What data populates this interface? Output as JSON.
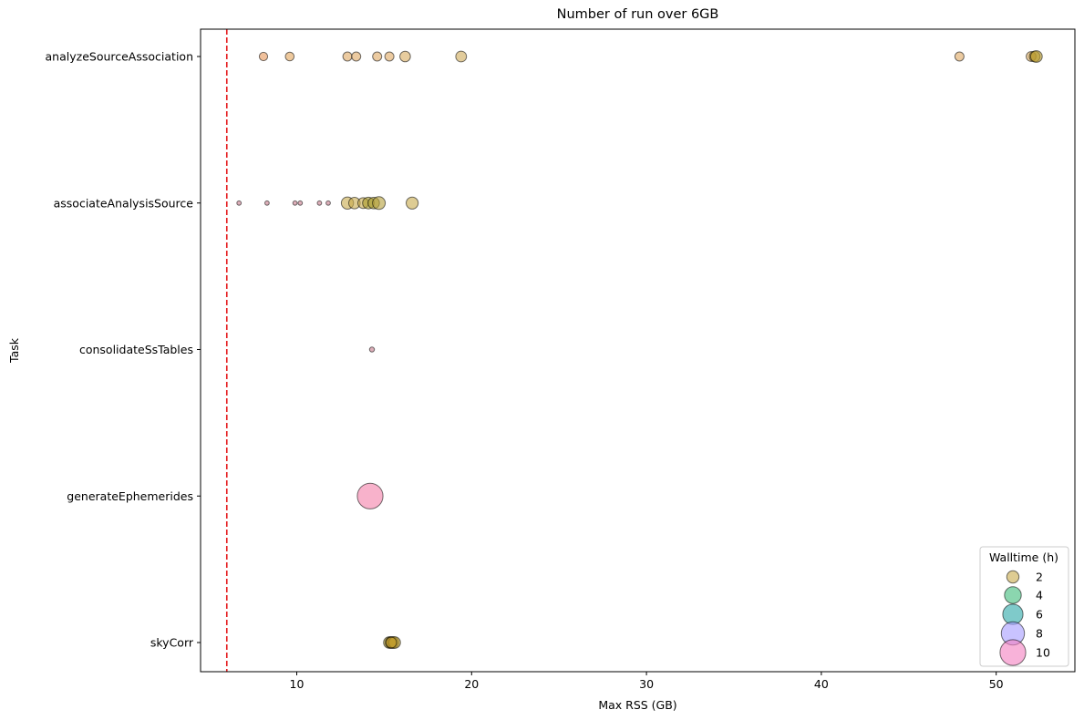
{
  "chart_data": {
    "type": "scatter",
    "title": "Number of run over 6GB",
    "xlabel": "Max RSS (GB)",
    "ylabel": "Task",
    "xlim": [
      4.5,
      54.5
    ],
    "xticks": [
      10,
      20,
      30,
      40,
      50
    ],
    "categories": [
      "analyzeSourceAssociation",
      "associateAnalysisSource",
      "consolidateSsTables",
      "generateEphemerides",
      "skyCorr"
    ],
    "threshold": {
      "x": 6,
      "color": "#e41a1c",
      "style": "dashed"
    },
    "size_encoding": "walltime_h",
    "grid": false,
    "legend": {
      "title": "Walltime (h)",
      "position": "bottom-right",
      "entries": [
        {
          "label": "2",
          "walltime": 2,
          "color": "#c8aa4b"
        },
        {
          "label": "4",
          "walltime": 4,
          "color": "#3dbb7a"
        },
        {
          "label": "6",
          "walltime": 6,
          "color": "#2aa6a6"
        },
        {
          "label": "8",
          "walltime": 8,
          "color": "#a59bff"
        },
        {
          "label": "10",
          "walltime": 10,
          "color": "#f47fbf"
        }
      ]
    },
    "points": [
      {
        "task": "analyzeSourceAssociation",
        "x": 8.1,
        "walltime": 0.8,
        "color": "#e8975a"
      },
      {
        "task": "analyzeSourceAssociation",
        "x": 9.6,
        "walltime": 0.9,
        "color": "#e3a55c"
      },
      {
        "task": "analyzeSourceAssociation",
        "x": 12.9,
        "walltime": 1.0,
        "color": "#e0a962"
      },
      {
        "task": "analyzeSourceAssociation",
        "x": 13.4,
        "walltime": 1.0,
        "color": "#e0a962"
      },
      {
        "task": "analyzeSourceAssociation",
        "x": 14.6,
        "walltime": 1.0,
        "color": "#e0a962"
      },
      {
        "task": "analyzeSourceAssociation",
        "x": 15.3,
        "walltime": 1.0,
        "color": "#e0a962"
      },
      {
        "task": "analyzeSourceAssociation",
        "x": 16.2,
        "walltime": 1.4,
        "color": "#d7aa5e"
      },
      {
        "task": "analyzeSourceAssociation",
        "x": 19.4,
        "walltime": 1.5,
        "color": "#cfaa58"
      },
      {
        "task": "analyzeSourceAssociation",
        "x": 47.9,
        "walltime": 1.0,
        "color": "#e0a962"
      },
      {
        "task": "analyzeSourceAssociation",
        "x": 52.0,
        "walltime": 1.2,
        "color": "#d9a85c"
      },
      {
        "task": "analyzeSourceAssociation",
        "x": 52.2,
        "walltime": 1.5,
        "color": "#b8992c"
      },
      {
        "task": "analyzeSourceAssociation",
        "x": 52.3,
        "walltime": 1.8,
        "color": "#b8992c"
      },
      {
        "task": "associateAnalysisSource",
        "x": 6.7,
        "walltime": 0.15,
        "color": "#c77a8a"
      },
      {
        "task": "associateAnalysisSource",
        "x": 8.3,
        "walltime": 0.15,
        "color": "#c77a8a"
      },
      {
        "task": "associateAnalysisSource",
        "x": 9.9,
        "walltime": 0.15,
        "color": "#c77a8a"
      },
      {
        "task": "associateAnalysisSource",
        "x": 10.2,
        "walltime": 0.15,
        "color": "#c77a8a"
      },
      {
        "task": "associateAnalysisSource",
        "x": 11.3,
        "walltime": 0.15,
        "color": "#c77a8a"
      },
      {
        "task": "associateAnalysisSource",
        "x": 11.8,
        "walltime": 0.15,
        "color": "#c77a8a"
      },
      {
        "task": "associateAnalysisSource",
        "x": 12.9,
        "walltime": 2.0,
        "color": "#c8aa4b"
      },
      {
        "task": "associateAnalysisSource",
        "x": 13.3,
        "walltime": 1.7,
        "color": "#c8aa4b"
      },
      {
        "task": "associateAnalysisSource",
        "x": 13.8,
        "walltime": 1.5,
        "color": "#c8aa4b"
      },
      {
        "task": "associateAnalysisSource",
        "x": 14.1,
        "walltime": 1.8,
        "color": "#a89a2a"
      },
      {
        "task": "associateAnalysisSource",
        "x": 14.4,
        "walltime": 1.7,
        "color": "#a89a2a"
      },
      {
        "task": "associateAnalysisSource",
        "x": 14.7,
        "walltime": 2.2,
        "color": "#b5a03a"
      },
      {
        "task": "associateAnalysisSource",
        "x": 16.6,
        "walltime": 1.9,
        "color": "#c8aa4b"
      },
      {
        "task": "consolidateSsTables",
        "x": 14.3,
        "walltime": 0.2,
        "color": "#c77a8a"
      },
      {
        "task": "generateEphemerides",
        "x": 14.2,
        "walltime": 10.0,
        "color": "#f47fa8"
      },
      {
        "task": "skyCorr",
        "x": 15.3,
        "walltime": 1.8,
        "color": "#9f8a20"
      },
      {
        "task": "skyCorr",
        "x": 15.4,
        "walltime": 1.8,
        "color": "#a89020"
      },
      {
        "task": "skyCorr",
        "x": 15.5,
        "walltime": 1.8,
        "color": "#b09424"
      },
      {
        "task": "skyCorr",
        "x": 15.6,
        "walltime": 1.8,
        "color": "#b89a2a"
      },
      {
        "task": "skyCorr",
        "x": 15.4,
        "walltime": 1.5,
        "color": "#c8a030"
      }
    ]
  }
}
